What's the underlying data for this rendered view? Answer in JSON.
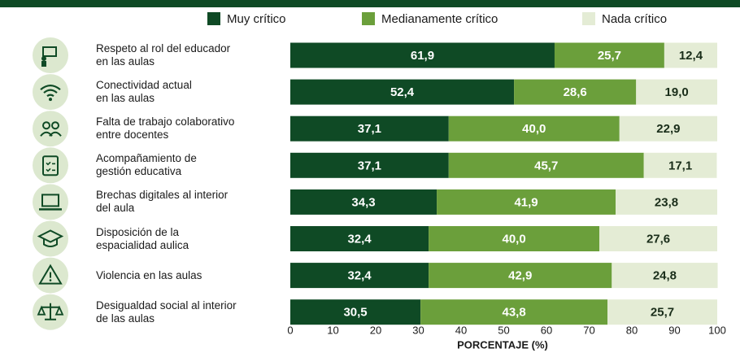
{
  "chart_data": {
    "type": "bar",
    "orientation": "horizontal",
    "stacked": true,
    "categories": [
      "Respeto al rol del educador\nen las aulas",
      "Conectividad actual\nen las aulas",
      "Falta de trabajo colaborativo\nentre docentes",
      "Acompañamiento de\ngestión educativa",
      "Brechas digitales al interior\ndel aula",
      "Disposición de la\nespacialidad aulica",
      "Violencia en las aulas",
      "Desigualdad social al interior\nde las aulas"
    ],
    "series": [
      {
        "name": "Muy crítico",
        "color": "#0f4a25",
        "values": [
          61.9,
          52.4,
          37.1,
          37.1,
          34.3,
          32.4,
          32.4,
          30.5
        ],
        "value_labels": [
          "61,9",
          "52,4",
          "37,1",
          "37,1",
          "34,3",
          "32,4",
          "32,4",
          "30,5"
        ]
      },
      {
        "name": "Medianamente crítico",
        "color": "#6b9f3b",
        "values": [
          25.7,
          28.6,
          40.0,
          45.7,
          41.9,
          40.0,
          42.9,
          43.8
        ],
        "value_labels": [
          "25,7",
          "28,6",
          "40,0",
          "45,7",
          "41,9",
          "40,0",
          "42,9",
          "43,8"
        ]
      },
      {
        "name": "Nada crítico",
        "color": "#e4ecd5",
        "values": [
          12.4,
          19.0,
          22.9,
          17.1,
          23.8,
          27.6,
          24.8,
          25.7
        ],
        "value_labels": [
          "12,4",
          "19,0",
          "22,9",
          "17,1",
          "23,8",
          "27,6",
          "24,8",
          "25,7"
        ]
      }
    ],
    "xlabel": "PORCENTAJE (%)",
    "xlim": [
      0,
      100
    ],
    "xticks": [
      0,
      10,
      20,
      30,
      40,
      50,
      60,
      70,
      80,
      90,
      100
    ],
    "legend": "top"
  }
}
